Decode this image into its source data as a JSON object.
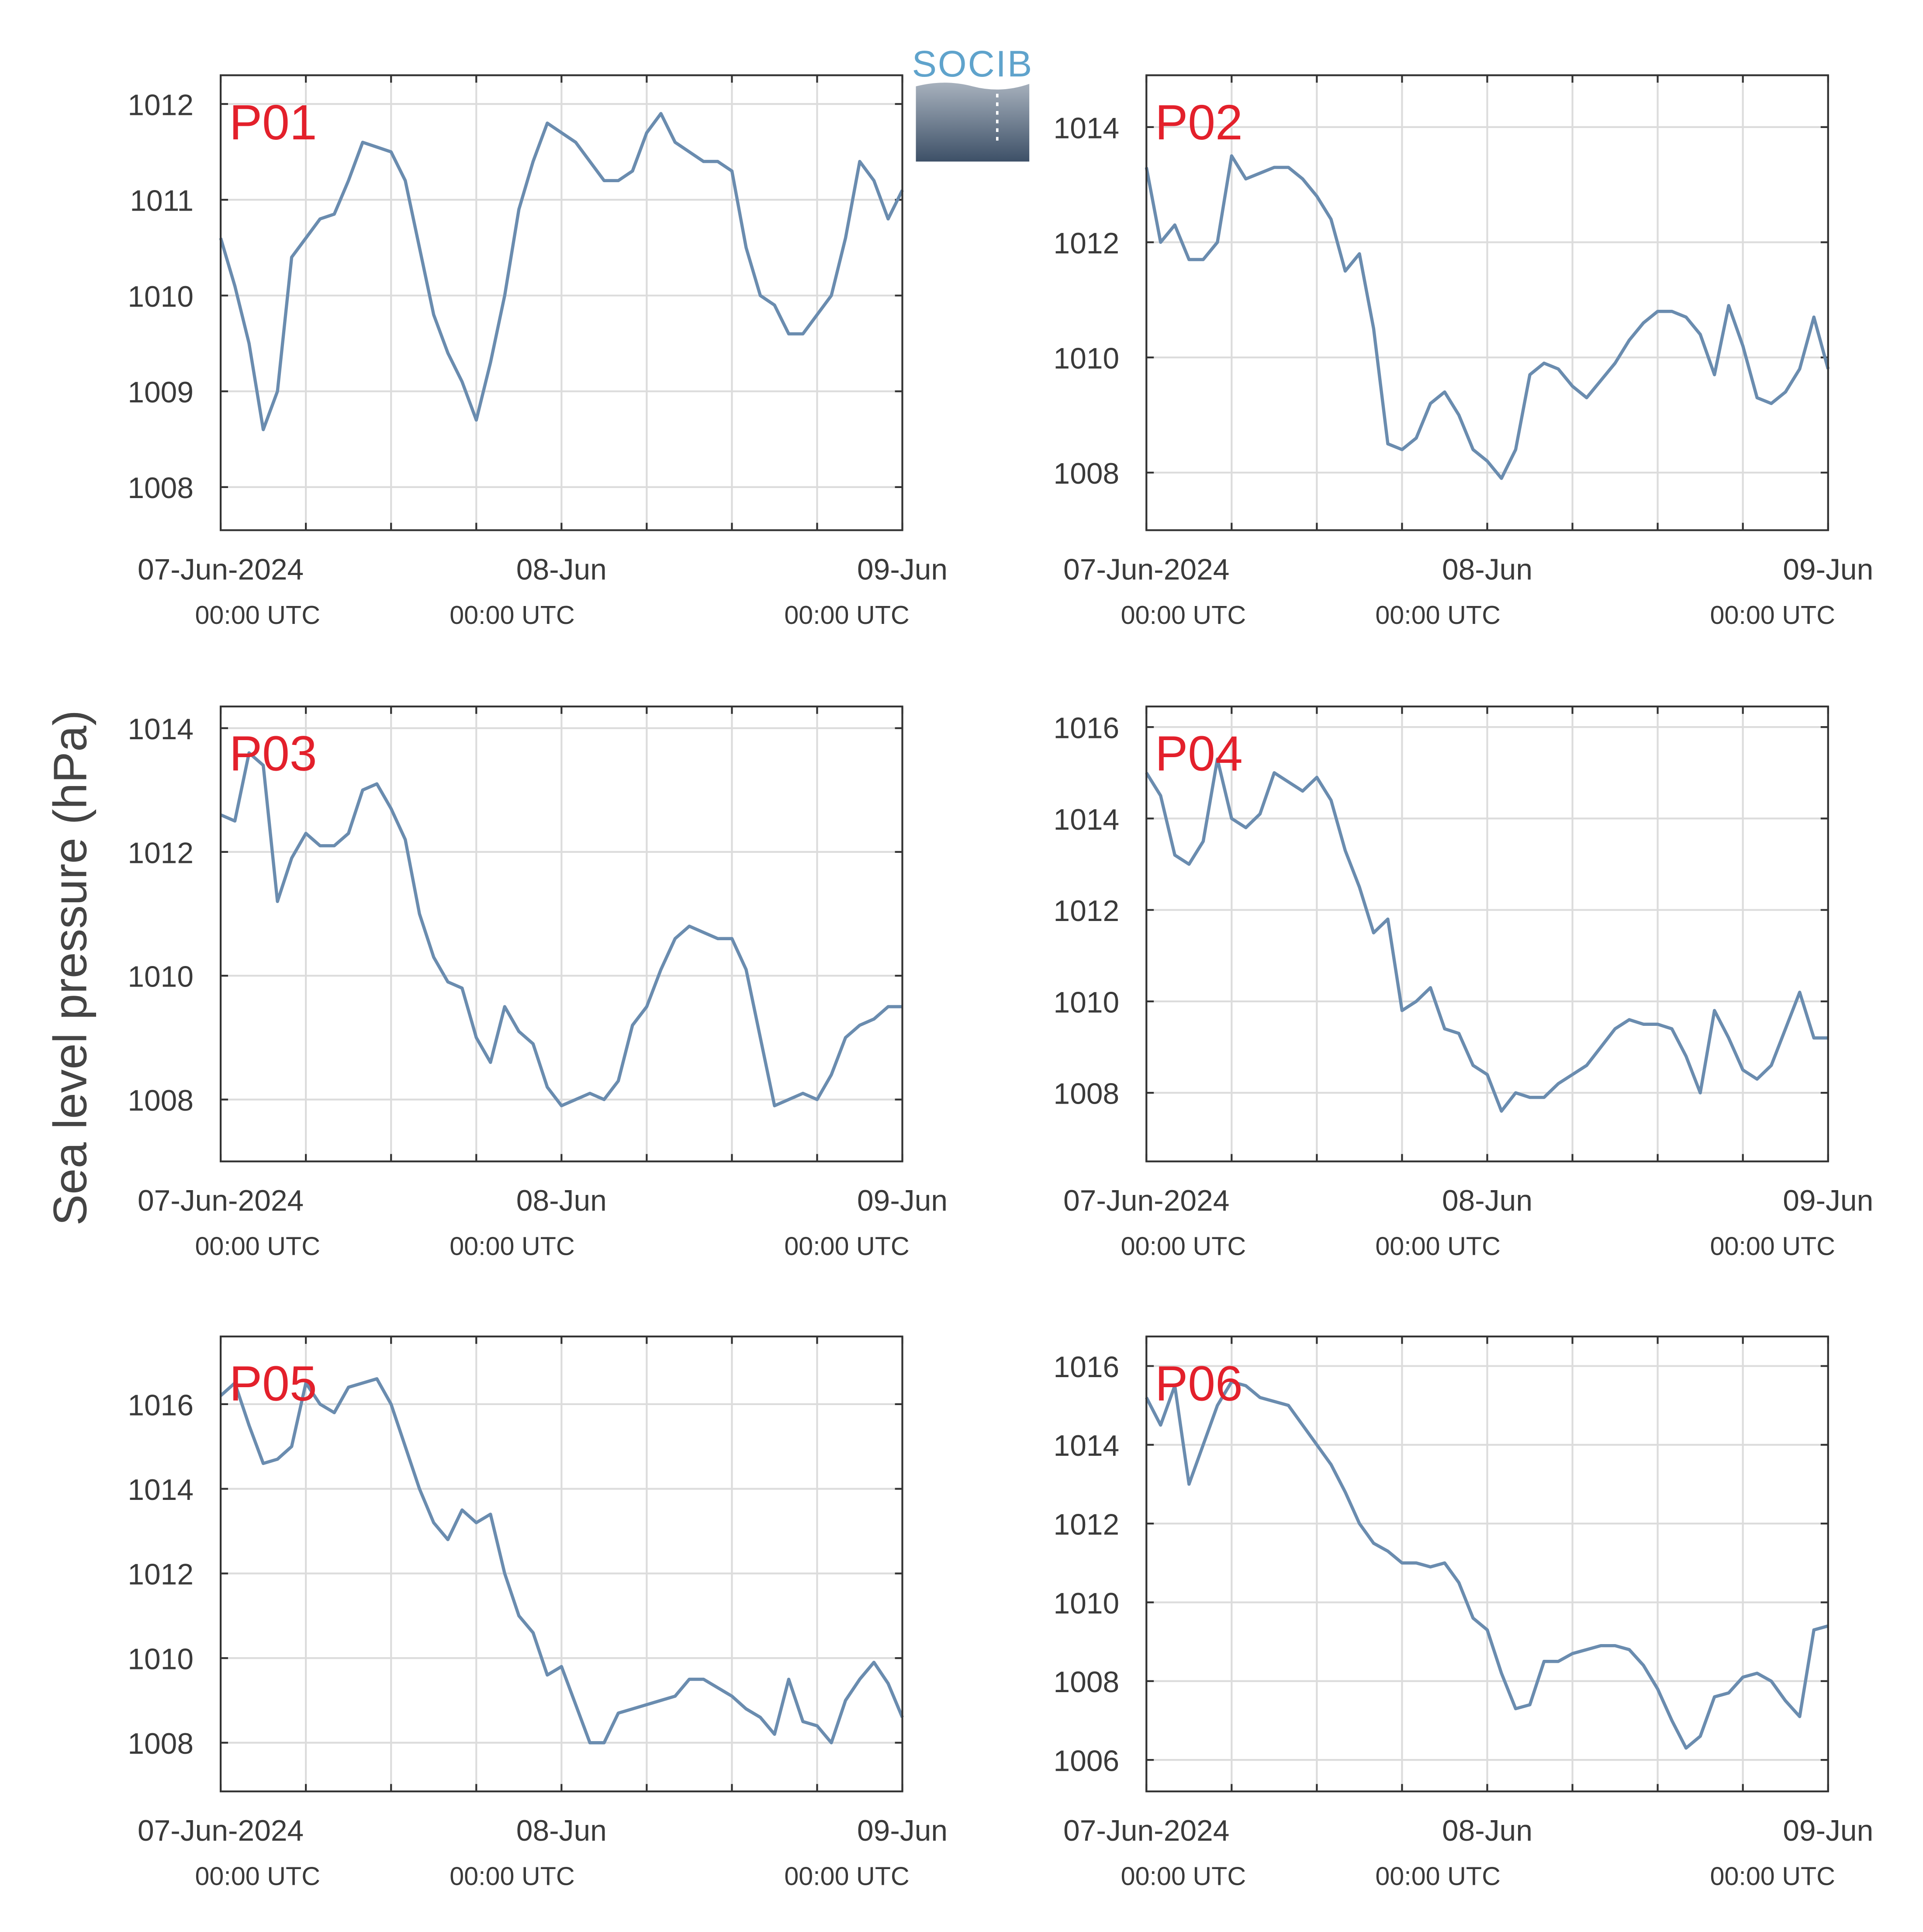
{
  "ylabel": "Sea level pressure (hPa)",
  "logo_text": "SOCIB",
  "chart_data": [
    {
      "type": "line",
      "title": "P01",
      "color": "#6a8caf",
      "x": [
        "2024-06-07 00:00",
        "2024-06-07 01:00",
        "2024-06-07 02:00",
        "2024-06-07 03:00",
        "2024-06-07 04:00",
        "2024-06-07 05:00",
        "2024-06-07 06:00",
        "2024-06-07 07:00",
        "2024-06-07 08:00",
        "2024-06-07 09:00",
        "2024-06-07 10:00",
        "2024-06-07 11:00",
        "2024-06-07 12:00",
        "2024-06-07 13:00",
        "2024-06-07 14:00",
        "2024-06-07 15:00",
        "2024-06-07 16:00",
        "2024-06-07 17:00",
        "2024-06-07 18:00",
        "2024-06-07 19:00",
        "2024-06-07 20:00",
        "2024-06-07 21:00",
        "2024-06-07 22:00",
        "2024-06-07 23:00",
        "2024-06-08 00:00",
        "2024-06-08 01:00",
        "2024-06-08 02:00",
        "2024-06-08 03:00",
        "2024-06-08 04:00",
        "2024-06-08 05:00",
        "2024-06-08 06:00",
        "2024-06-08 07:00",
        "2024-06-08 08:00",
        "2024-06-08 09:00",
        "2024-06-08 10:00",
        "2024-06-08 11:00",
        "2024-06-08 12:00",
        "2024-06-08 13:00",
        "2024-06-08 14:00",
        "2024-06-08 15:00",
        "2024-06-08 16:00",
        "2024-06-08 17:00",
        "2024-06-08 18:00",
        "2024-06-08 19:00",
        "2024-06-08 20:00",
        "2024-06-08 21:00",
        "2024-06-08 22:00",
        "2024-06-08 23:00",
        "2024-06-09 00:00"
      ],
      "values": [
        1010.6,
        1010.1,
        1009.5,
        1008.6,
        1009.0,
        1010.4,
        1010.6,
        1010.8,
        1010.85,
        1011.2,
        1011.6,
        1011.55,
        1011.5,
        1011.2,
        1010.5,
        1009.8,
        1009.4,
        1009.1,
        1008.7,
        1009.3,
        1010.0,
        1010.9,
        1011.4,
        1011.8,
        1011.7,
        1011.6,
        1011.4,
        1011.2,
        1011.2,
        1011.3,
        1011.7,
        1011.9,
        1011.6,
        1011.5,
        1011.4,
        1011.4,
        1011.3,
        1010.5,
        1010.0,
        1009.9,
        1009.6,
        1009.6,
        1009.8,
        1010.0,
        1010.6,
        1011.4,
        1011.2,
        1010.8,
        1011.1
      ],
      "xlim": [
        "2024-06-07 00:00",
        "2024-06-09 00:00"
      ],
      "xticks": [
        {
          "value": "2024-06-07 00:00",
          "label": "07-Jun-2024"
        },
        {
          "value": "2024-06-08 00:00",
          "label": "08-Jun"
        },
        {
          "value": "2024-06-09 00:00",
          "label": "09-Jun"
        }
      ],
      "xtick_sublabels": [
        "00:00 UTC",
        "00:00 UTC",
        "00:00 UTC"
      ],
      "xgrid": [
        "2024-06-07 06:00",
        "2024-06-07 12:00",
        "2024-06-07 18:00",
        "2024-06-08 06:00",
        "2024-06-08 12:00",
        "2024-06-08 18:00"
      ],
      "ylim": [
        1007.55,
        1012.3
      ],
      "yticks": [
        1008,
        1009,
        1010,
        1011,
        1012
      ],
      "grid": true
    },
    {
      "type": "line",
      "title": "P02",
      "color": "#6a8caf",
      "x": [
        "2024-06-07 00:00",
        "2024-06-07 01:00",
        "2024-06-07 02:00",
        "2024-06-07 03:00",
        "2024-06-07 04:00",
        "2024-06-07 05:00",
        "2024-06-07 06:00",
        "2024-06-07 07:00",
        "2024-06-07 08:00",
        "2024-06-07 09:00",
        "2024-06-07 10:00",
        "2024-06-07 11:00",
        "2024-06-07 12:00",
        "2024-06-07 13:00",
        "2024-06-07 14:00",
        "2024-06-07 15:00",
        "2024-06-07 16:00",
        "2024-06-07 17:00",
        "2024-06-07 18:00",
        "2024-06-07 19:00",
        "2024-06-07 20:00",
        "2024-06-07 21:00",
        "2024-06-07 22:00",
        "2024-06-07 23:00",
        "2024-06-08 00:00",
        "2024-06-08 01:00",
        "2024-06-08 02:00",
        "2024-06-08 03:00",
        "2024-06-08 04:00",
        "2024-06-08 05:00",
        "2024-06-08 06:00",
        "2024-06-08 07:00",
        "2024-06-08 08:00",
        "2024-06-08 09:00",
        "2024-06-08 10:00",
        "2024-06-08 11:00",
        "2024-06-08 12:00",
        "2024-06-08 13:00",
        "2024-06-08 14:00",
        "2024-06-08 15:00",
        "2024-06-08 16:00",
        "2024-06-08 17:00",
        "2024-06-08 18:00",
        "2024-06-08 19:00",
        "2024-06-08 20:00",
        "2024-06-08 21:00",
        "2024-06-08 22:00",
        "2024-06-08 23:00",
        "2024-06-09 00:00"
      ],
      "values": [
        1013.3,
        1012.0,
        1012.3,
        1011.7,
        1011.7,
        1012.0,
        1013.5,
        1013.1,
        1013.2,
        1013.3,
        1013.3,
        1013.1,
        1012.8,
        1012.4,
        1011.5,
        1011.8,
        1010.5,
        1008.5,
        1008.4,
        1008.6,
        1009.2,
        1009.4,
        1009.0,
        1008.4,
        1008.2,
        1007.9,
        1008.4,
        1009.7,
        1009.9,
        1009.8,
        1009.5,
        1009.3,
        1009.6,
        1009.9,
        1010.3,
        1010.6,
        1010.8,
        1010.8,
        1010.7,
        1010.4,
        1009.7,
        1010.9,
        1010.2,
        1009.3,
        1009.2,
        1009.4,
        1009.8,
        1010.7,
        1009.8
      ],
      "xlim": [
        "2024-06-07 00:00",
        "2024-06-09 00:00"
      ],
      "xticks": [
        {
          "value": "2024-06-07 00:00",
          "label": "07-Jun-2024"
        },
        {
          "value": "2024-06-08 00:00",
          "label": "08-Jun"
        },
        {
          "value": "2024-06-09 00:00",
          "label": "09-Jun"
        }
      ],
      "xtick_sublabels": [
        "00:00 UTC",
        "00:00 UTC",
        "00:00 UTC"
      ],
      "xgrid": [
        "2024-06-07 06:00",
        "2024-06-07 12:00",
        "2024-06-07 18:00",
        "2024-06-08 06:00",
        "2024-06-08 12:00",
        "2024-06-08 18:00"
      ],
      "ylim": [
        1007.0,
        1014.9
      ],
      "yticks": [
        1008,
        1010,
        1012,
        1014
      ],
      "grid": true
    },
    {
      "type": "line",
      "title": "P03",
      "color": "#6a8caf",
      "x": [
        "2024-06-07 00:00",
        "2024-06-07 01:00",
        "2024-06-07 02:00",
        "2024-06-07 03:00",
        "2024-06-07 04:00",
        "2024-06-07 05:00",
        "2024-06-07 06:00",
        "2024-06-07 07:00",
        "2024-06-07 08:00",
        "2024-06-07 09:00",
        "2024-06-07 10:00",
        "2024-06-07 11:00",
        "2024-06-07 12:00",
        "2024-06-07 13:00",
        "2024-06-07 14:00",
        "2024-06-07 15:00",
        "2024-06-07 16:00",
        "2024-06-07 17:00",
        "2024-06-07 18:00",
        "2024-06-07 19:00",
        "2024-06-07 20:00",
        "2024-06-07 21:00",
        "2024-06-07 22:00",
        "2024-06-07 23:00",
        "2024-06-08 00:00",
        "2024-06-08 01:00",
        "2024-06-08 02:00",
        "2024-06-08 03:00",
        "2024-06-08 04:00",
        "2024-06-08 05:00",
        "2024-06-08 06:00",
        "2024-06-08 07:00",
        "2024-06-08 08:00",
        "2024-06-08 09:00",
        "2024-06-08 10:00",
        "2024-06-08 11:00",
        "2024-06-08 12:00",
        "2024-06-08 13:00",
        "2024-06-08 14:00",
        "2024-06-08 15:00",
        "2024-06-08 16:00",
        "2024-06-08 17:00",
        "2024-06-08 18:00",
        "2024-06-08 19:00",
        "2024-06-08 20:00",
        "2024-06-08 21:00",
        "2024-06-08 22:00",
        "2024-06-08 23:00",
        "2024-06-09 00:00"
      ],
      "values": [
        1012.6,
        1012.5,
        1013.6,
        1013.4,
        1011.2,
        1011.9,
        1012.3,
        1012.1,
        1012.1,
        1012.3,
        1013.0,
        1013.1,
        1012.7,
        1012.2,
        1011.0,
        1010.3,
        1009.9,
        1009.8,
        1009.0,
        1008.6,
        1009.5,
        1009.1,
        1008.9,
        1008.2,
        1007.9,
        1008.0,
        1008.1,
        1008.0,
        1008.3,
        1009.2,
        1009.5,
        1010.1,
        1010.6,
        1010.8,
        1010.7,
        1010.6,
        1010.6,
        1010.1,
        1009.0,
        1007.9,
        1008.0,
        1008.1,
        1008.0,
        1008.4,
        1009.0,
        1009.2,
        1009.3,
        1009.5,
        1009.5
      ],
      "xlim": [
        "2024-06-07 00:00",
        "2024-06-09 00:00"
      ],
      "xticks": [
        {
          "value": "2024-06-07 00:00",
          "label": "07-Jun-2024"
        },
        {
          "value": "2024-06-08 00:00",
          "label": "08-Jun"
        },
        {
          "value": "2024-06-09 00:00",
          "label": "09-Jun"
        }
      ],
      "xtick_sublabels": [
        "00:00 UTC",
        "00:00 UTC",
        "00:00 UTC"
      ],
      "xgrid": [
        "2024-06-07 06:00",
        "2024-06-07 12:00",
        "2024-06-07 18:00",
        "2024-06-08 06:00",
        "2024-06-08 12:00",
        "2024-06-08 18:00"
      ],
      "ylim": [
        1007.0,
        1014.35
      ],
      "yticks": [
        1008,
        1010,
        1012,
        1014
      ],
      "grid": true
    },
    {
      "type": "line",
      "title": "P04",
      "color": "#6a8caf",
      "x": [
        "2024-06-07 00:00",
        "2024-06-07 01:00",
        "2024-06-07 02:00",
        "2024-06-07 03:00",
        "2024-06-07 04:00",
        "2024-06-07 05:00",
        "2024-06-07 06:00",
        "2024-06-07 07:00",
        "2024-06-07 08:00",
        "2024-06-07 09:00",
        "2024-06-07 10:00",
        "2024-06-07 11:00",
        "2024-06-07 12:00",
        "2024-06-07 13:00",
        "2024-06-07 14:00",
        "2024-06-07 15:00",
        "2024-06-07 16:00",
        "2024-06-07 17:00",
        "2024-06-07 18:00",
        "2024-06-07 19:00",
        "2024-06-07 20:00",
        "2024-06-07 21:00",
        "2024-06-07 22:00",
        "2024-06-07 23:00",
        "2024-06-08 00:00",
        "2024-06-08 01:00",
        "2024-06-08 02:00",
        "2024-06-08 03:00",
        "2024-06-08 04:00",
        "2024-06-08 05:00",
        "2024-06-08 06:00",
        "2024-06-08 07:00",
        "2024-06-08 08:00",
        "2024-06-08 09:00",
        "2024-06-08 10:00",
        "2024-06-08 11:00",
        "2024-06-08 12:00",
        "2024-06-08 13:00",
        "2024-06-08 14:00",
        "2024-06-08 15:00",
        "2024-06-08 16:00",
        "2024-06-08 17:00",
        "2024-06-08 18:00",
        "2024-06-08 19:00",
        "2024-06-08 20:00",
        "2024-06-08 21:00",
        "2024-06-08 22:00",
        "2024-06-08 23:00",
        "2024-06-09 00:00"
      ],
      "values": [
        1015.0,
        1014.5,
        1013.2,
        1013.0,
        1013.5,
        1015.3,
        1014.0,
        1013.8,
        1014.1,
        1015.0,
        1014.8,
        1014.6,
        1014.9,
        1014.4,
        1013.3,
        1012.5,
        1011.5,
        1011.8,
        1009.8,
        1010.0,
        1010.3,
        1009.4,
        1009.3,
        1008.6,
        1008.4,
        1007.6,
        1008.0,
        1007.9,
        1007.9,
        1008.2,
        1008.4,
        1008.6,
        1009.0,
        1009.4,
        1009.6,
        1009.5,
        1009.5,
        1009.4,
        1008.8,
        1008.0,
        1009.8,
        1009.2,
        1008.5,
        1008.3,
        1008.6,
        1009.4,
        1010.2,
        1009.2,
        1009.2
      ],
      "xlim": [
        "2024-06-07 00:00",
        "2024-06-09 00:00"
      ],
      "xticks": [
        {
          "value": "2024-06-07 00:00",
          "label": "07-Jun-2024"
        },
        {
          "value": "2024-06-08 00:00",
          "label": "08-Jun"
        },
        {
          "value": "2024-06-09 00:00",
          "label": "09-Jun"
        }
      ],
      "xtick_sublabels": [
        "00:00 UTC",
        "00:00 UTC",
        "00:00 UTC"
      ],
      "xgrid": [
        "2024-06-07 06:00",
        "2024-06-07 12:00",
        "2024-06-07 18:00",
        "2024-06-08 06:00",
        "2024-06-08 12:00",
        "2024-06-08 18:00"
      ],
      "ylim": [
        1006.5,
        1016.45
      ],
      "yticks": [
        1008,
        1010,
        1012,
        1014,
        1016
      ],
      "grid": true
    },
    {
      "type": "line",
      "title": "P05",
      "color": "#6a8caf",
      "x": [
        "2024-06-07 00:00",
        "2024-06-07 01:00",
        "2024-06-07 02:00",
        "2024-06-07 03:00",
        "2024-06-07 04:00",
        "2024-06-07 05:00",
        "2024-06-07 06:00",
        "2024-06-07 07:00",
        "2024-06-07 08:00",
        "2024-06-07 09:00",
        "2024-06-07 10:00",
        "2024-06-07 11:00",
        "2024-06-07 12:00",
        "2024-06-07 13:00",
        "2024-06-07 14:00",
        "2024-06-07 15:00",
        "2024-06-07 16:00",
        "2024-06-07 17:00",
        "2024-06-07 18:00",
        "2024-06-07 19:00",
        "2024-06-07 20:00",
        "2024-06-07 21:00",
        "2024-06-07 22:00",
        "2024-06-07 23:00",
        "2024-06-08 00:00",
        "2024-06-08 01:00",
        "2024-06-08 02:00",
        "2024-06-08 03:00",
        "2024-06-08 04:00",
        "2024-06-08 05:00",
        "2024-06-08 06:00",
        "2024-06-08 07:00",
        "2024-06-08 08:00",
        "2024-06-08 09:00",
        "2024-06-08 10:00",
        "2024-06-08 11:00",
        "2024-06-08 12:00",
        "2024-06-08 13:00",
        "2024-06-08 14:00",
        "2024-06-08 15:00",
        "2024-06-08 16:00",
        "2024-06-08 17:00",
        "2024-06-08 18:00",
        "2024-06-08 19:00",
        "2024-06-08 20:00",
        "2024-06-08 21:00",
        "2024-06-08 22:00",
        "2024-06-08 23:00",
        "2024-06-09 00:00"
      ],
      "values": [
        1016.2,
        1016.5,
        1015.5,
        1014.6,
        1014.7,
        1015.0,
        1016.5,
        1016.0,
        1015.8,
        1016.4,
        1016.5,
        1016.6,
        1016.0,
        1015.0,
        1014.0,
        1013.2,
        1012.8,
        1013.5,
        1013.2,
        1013.4,
        1012.0,
        1011.0,
        1010.6,
        1009.6,
        1009.8,
        1008.9,
        1008.0,
        1008.0,
        1008.7,
        1008.8,
        1008.9,
        1009.0,
        1009.1,
        1009.5,
        1009.5,
        1009.3,
        1009.1,
        1008.8,
        1008.6,
        1008.2,
        1009.5,
        1008.5,
        1008.4,
        1008.0,
        1009.0,
        1009.5,
        1009.9,
        1009.4,
        1008.6
      ],
      "xlim": [
        "2024-06-07 00:00",
        "2024-06-09 00:00"
      ],
      "xticks": [
        {
          "value": "2024-06-07 00:00",
          "label": "07-Jun-2024"
        },
        {
          "value": "2024-06-08 00:00",
          "label": "08-Jun"
        },
        {
          "value": "2024-06-09 00:00",
          "label": "09-Jun"
        }
      ],
      "xtick_sublabels": [
        "00:00 UTC",
        "00:00 UTC",
        "00:00 UTC"
      ],
      "xgrid": [
        "2024-06-07 06:00",
        "2024-06-07 12:00",
        "2024-06-07 18:00",
        "2024-06-08 06:00",
        "2024-06-08 12:00",
        "2024-06-08 18:00"
      ],
      "ylim": [
        1006.85,
        1017.6
      ],
      "yticks": [
        1008,
        1010,
        1012,
        1014,
        1016
      ],
      "grid": true
    },
    {
      "type": "line",
      "title": "P06",
      "color": "#6a8caf",
      "x": [
        "2024-06-07 00:00",
        "2024-06-07 01:00",
        "2024-06-07 02:00",
        "2024-06-07 03:00",
        "2024-06-07 04:00",
        "2024-06-07 05:00",
        "2024-06-07 06:00",
        "2024-06-07 07:00",
        "2024-06-07 08:00",
        "2024-06-07 09:00",
        "2024-06-07 10:00",
        "2024-06-07 11:00",
        "2024-06-07 12:00",
        "2024-06-07 13:00",
        "2024-06-07 14:00",
        "2024-06-07 15:00",
        "2024-06-07 16:00",
        "2024-06-07 17:00",
        "2024-06-07 18:00",
        "2024-06-07 19:00",
        "2024-06-07 20:00",
        "2024-06-07 21:00",
        "2024-06-07 22:00",
        "2024-06-07 23:00",
        "2024-06-08 00:00",
        "2024-06-08 01:00",
        "2024-06-08 02:00",
        "2024-06-08 03:00",
        "2024-06-08 04:00",
        "2024-06-08 05:00",
        "2024-06-08 06:00",
        "2024-06-08 07:00",
        "2024-06-08 08:00",
        "2024-06-08 09:00",
        "2024-06-08 10:00",
        "2024-06-08 11:00",
        "2024-06-08 12:00",
        "2024-06-08 13:00",
        "2024-06-08 14:00",
        "2024-06-08 15:00",
        "2024-06-08 16:00",
        "2024-06-08 17:00",
        "2024-06-08 18:00",
        "2024-06-08 19:00",
        "2024-06-08 20:00",
        "2024-06-08 21:00",
        "2024-06-08 22:00",
        "2024-06-08 23:00",
        "2024-06-09 00:00"
      ],
      "values": [
        1015.2,
        1014.5,
        1015.5,
        1013.0,
        1014.0,
        1015.0,
        1015.6,
        1015.5,
        1015.2,
        1015.1,
        1015.0,
        1014.5,
        1014.0,
        1013.5,
        1012.8,
        1012.0,
        1011.5,
        1011.3,
        1011.0,
        1011.0,
        1010.9,
        1011.0,
        1010.5,
        1009.6,
        1009.3,
        1008.2,
        1007.3,
        1007.4,
        1008.5,
        1008.5,
        1008.7,
        1008.8,
        1008.9,
        1008.9,
        1008.8,
        1008.4,
        1007.8,
        1007.0,
        1006.3,
        1006.6,
        1007.6,
        1007.7,
        1008.1,
        1008.2,
        1008.0,
        1007.5,
        1007.1,
        1009.3,
        1009.4
      ],
      "xlim": [
        "2024-06-07 00:00",
        "2024-06-09 00:00"
      ],
      "xticks": [
        {
          "value": "2024-06-07 00:00",
          "label": "07-Jun-2024"
        },
        {
          "value": "2024-06-08 00:00",
          "label": "08-Jun"
        },
        {
          "value": "2024-06-09 00:00",
          "label": "09-Jun"
        }
      ],
      "xtick_sublabels": [
        "00:00 UTC",
        "00:00 UTC",
        "00:00 UTC"
      ],
      "xgrid": [
        "2024-06-07 06:00",
        "2024-06-07 12:00",
        "2024-06-07 18:00",
        "2024-06-08 06:00",
        "2024-06-08 12:00",
        "2024-06-08 18:00"
      ],
      "ylim": [
        1005.2,
        1016.75
      ],
      "yticks": [
        1006,
        1008,
        1010,
        1012,
        1014,
        1016
      ],
      "grid": true
    }
  ]
}
